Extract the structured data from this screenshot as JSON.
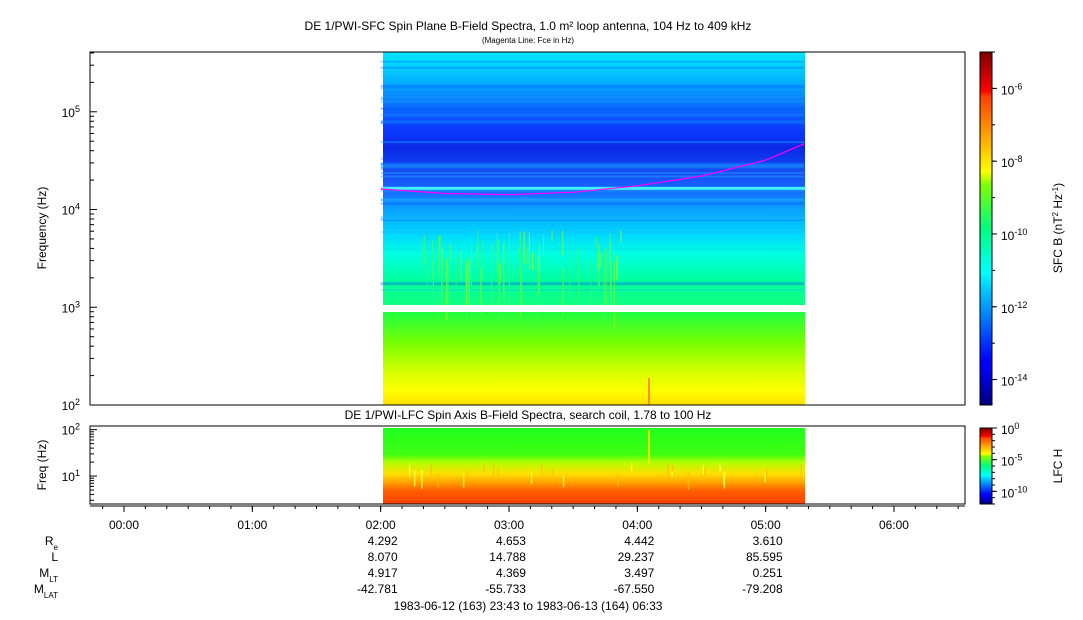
{
  "chart_data": [
    {
      "type": "heatmap",
      "title": "DE 1/PWI-SFC  Spin Plane B-Field Spectra, 1.0 m² loop antenna, 104 Hz to 409 kHz",
      "subtitle": "(Magenta Line: Fce in Hz)",
      "xlabel": "",
      "ylabel": "Frequency (Hz)",
      "y_scale": "log",
      "ylim": [
        100,
        409000
      ],
      "y_ticks": [
        "10^2",
        "10^3",
        "10^4",
        "10^5"
      ],
      "colorbar_label": "SFC B (nT^2 Hz^-1)",
      "colorbar_scale": "log",
      "colorbar_range": [
        2e-15,
        1e-05
      ],
      "colorbar_ticks": [
        "10^-6",
        "10^-8",
        "10^-10",
        "10^-12",
        "10^-14"
      ],
      "data_time_range": [
        "02:00",
        "05:18"
      ],
      "data_gap_hz": [
        900,
        1050
      ],
      "interference_line_hz": 16500,
      "fce_line": {
        "name": "Fce",
        "color": "#ff00ff",
        "time": [
          "02:00",
          "02:30",
          "03:00",
          "03:30",
          "04:00",
          "04:30",
          "05:00",
          "05:18"
        ],
        "hz": [
          16200,
          14600,
          14200,
          15000,
          17500,
          22000,
          32000,
          47000
        ]
      }
    },
    {
      "type": "heatmap",
      "title": "DE 1/PWI-LFC  Spin Axis B-Field Spectra, search coil, 1.78 to 100 Hz",
      "ylabel": "Freq (Hz)",
      "y_scale": "log",
      "ylim": [
        2.5,
        120
      ],
      "y_ticks": [
        "10^1",
        "10^2"
      ],
      "colorbar_label": "LFC H",
      "colorbar_scale": "log",
      "colorbar_range": [
        1e-12,
        1
      ],
      "colorbar_ticks": [
        "10^0",
        "10^-5",
        "10^-10"
      ],
      "data_time_range": [
        "02:00",
        "05:18"
      ]
    }
  ],
  "x_axis": {
    "ticks": [
      "00:00",
      "01:00",
      "02:00",
      "03:00",
      "04:00",
      "05:00",
      "06:00"
    ]
  },
  "ephemeris": {
    "rows": [
      {
        "label": "R",
        "sub": "e",
        "values": [
          "4.292",
          "4.653",
          "4.442",
          "3.610"
        ]
      },
      {
        "label": "L",
        "sub": "",
        "values": [
          "8.070",
          "14.788",
          "29.237",
          "85.595"
        ]
      },
      {
        "label": "M",
        "sub": "LT",
        "values": [
          "4.917",
          "4.369",
          "3.497",
          "0.251"
        ]
      },
      {
        "label": "M",
        "sub": "LAT",
        "values": [
          "-42.781",
          "-55.733",
          "-67.550",
          "-79.208"
        ]
      }
    ],
    "times": [
      "02:00",
      "03:00",
      "04:00",
      "05:00"
    ]
  },
  "time_range_text": "1983-06-12 (163) 23:43 to 1983-06-13 (164) 06:33"
}
